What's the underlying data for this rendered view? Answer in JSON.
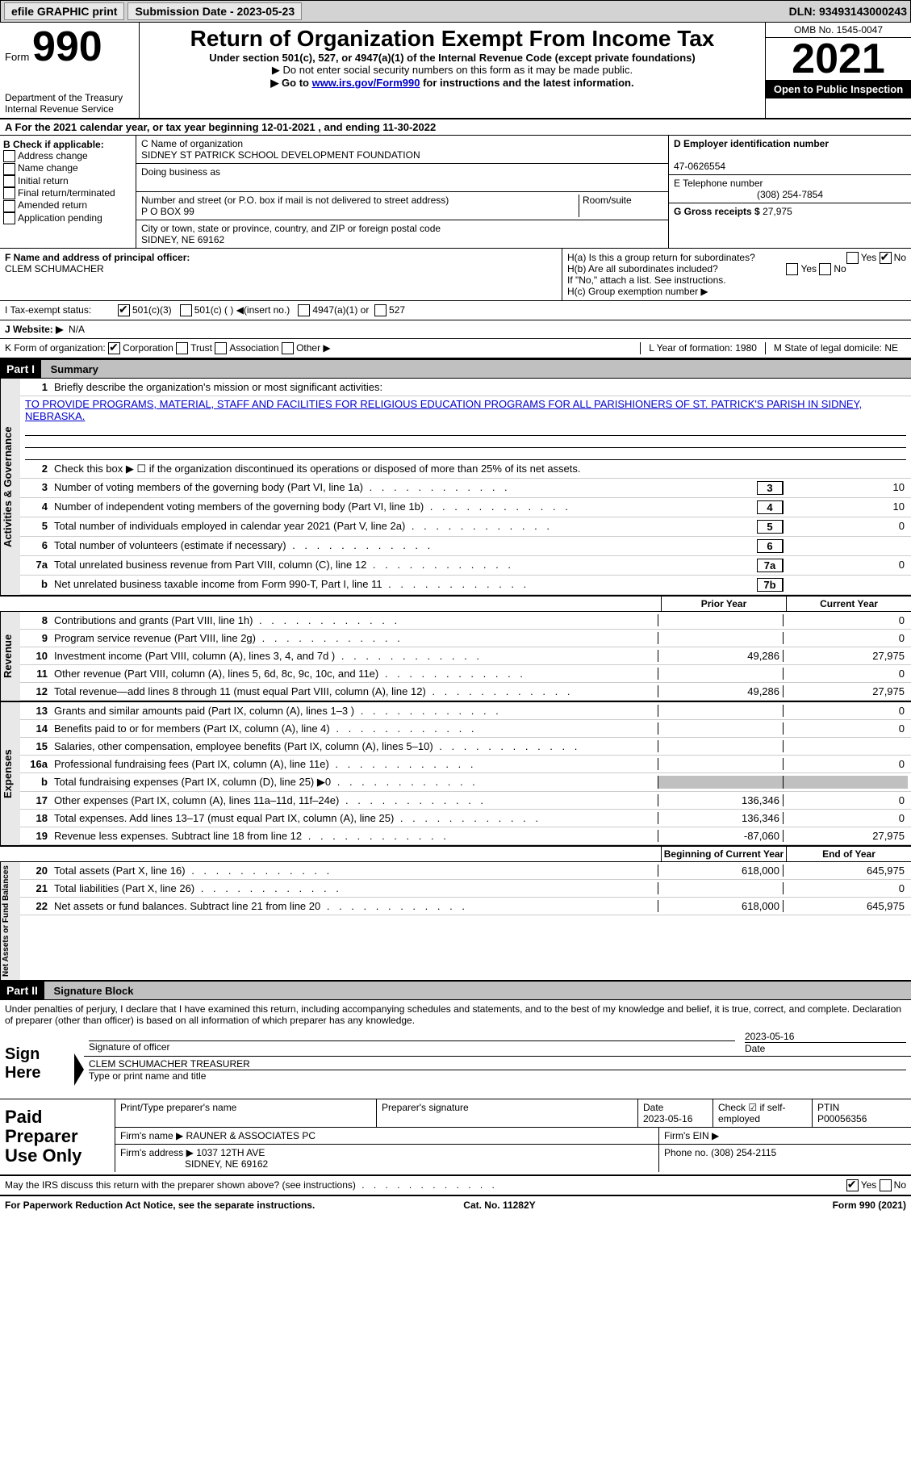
{
  "topbar": {
    "efile": "efile GRAPHIC print",
    "submission": "Submission Date - 2023-05-23",
    "dln": "DLN: 93493143000243"
  },
  "header": {
    "form_prefix": "Form",
    "form_number": "990",
    "title": "Return of Organization Exempt From Income Tax",
    "subtitle": "Under section 501(c), 527, or 4947(a)(1) of the Internal Revenue Code (except private foundations)",
    "note1": "▶ Do not enter social security numbers on this form as it may be made public.",
    "note2_prefix": "▶ Go to ",
    "note2_link": "www.irs.gov/Form990",
    "note2_suffix": " for instructions and the latest information.",
    "dept": "Department of the Treasury",
    "irs": "Internal Revenue Service",
    "omb": "OMB No. 1545-0047",
    "year": "2021",
    "inspection": "Open to Public Inspection"
  },
  "section_a": "A  For the 2021 calendar year, or tax year beginning 12-01-2021    , and ending 11-30-2022",
  "col_b": {
    "header": "B Check if applicable:",
    "items": [
      "Address change",
      "Name change",
      "Initial return",
      "Final return/terminated",
      "Amended return",
      "Application pending"
    ]
  },
  "col_c": {
    "name_label": "C Name of organization",
    "name": "SIDNEY ST PATRICK SCHOOL DEVELOPMENT FOUNDATION",
    "dba_label": "Doing business as",
    "dba": "",
    "addr_label": "Number and street (or P.O. box if mail is not delivered to street address)",
    "addr": "P O BOX 99",
    "room_label": "Room/suite",
    "city_label": "City or town, state or province, country, and ZIP or foreign postal code",
    "city": "SIDNEY, NE  69162"
  },
  "col_d": {
    "ein_label": "D Employer identification number",
    "ein": "47-0626554",
    "phone_label": "E Telephone number",
    "phone": "(308) 254-7854",
    "gross_label": "G Gross receipts $ ",
    "gross": "27,975"
  },
  "row_f": {
    "label": "F Name and address of principal officer:",
    "name": "CLEM SCHUMACHER"
  },
  "row_h": {
    "a": "H(a)  Is this a group return for subordinates?",
    "b": "H(b)  Are all subordinates included?",
    "note": "If \"No,\" attach a list. See instructions.",
    "c": "H(c)  Group exemption number ▶"
  },
  "row_i": {
    "label": "I    Tax-exempt status:",
    "opt1": "501(c)(3)",
    "opt2": "501(c) (  ) ◀(insert no.)",
    "opt3": "4947(a)(1) or",
    "opt4": "527"
  },
  "row_j": {
    "label": "J   Website: ▶",
    "value": "N/A"
  },
  "row_k": {
    "label": "K Form of organization:",
    "opts": [
      "Corporation",
      "Trust",
      "Association",
      "Other ▶"
    ],
    "l": "L Year of formation: 1980",
    "m": "M State of legal domicile: NE"
  },
  "part1": {
    "header": "Part I",
    "title": "Summary",
    "line1_label": "Briefly describe the organization's mission or most significant activities:",
    "mission": "TO PROVIDE PROGRAMS, MATERIAL, STAFF AND FACILITIES FOR RELIGIOUS EDUCATION PROGRAMS FOR ALL PARISHIONERS OF ST. PATRICK'S PARISH IN SIDNEY, NEBRASKA.",
    "line2": "Check this box ▶ ☐  if the organization discontinued its operations or disposed of more than 25% of its net assets.",
    "lines_simple": [
      {
        "n": "3",
        "d": "Number of voting members of the governing body (Part VI, line 1a)",
        "box": "3",
        "v": "10"
      },
      {
        "n": "4",
        "d": "Number of independent voting members of the governing body (Part VI, line 1b)",
        "box": "4",
        "v": "10"
      },
      {
        "n": "5",
        "d": "Total number of individuals employed in calendar year 2021 (Part V, line 2a)",
        "box": "5",
        "v": "0"
      },
      {
        "n": "6",
        "d": "Total number of volunteers (estimate if necessary)",
        "box": "6",
        "v": ""
      },
      {
        "n": "7a",
        "d": "Total unrelated business revenue from Part VIII, column (C), line 12",
        "box": "7a",
        "v": "0"
      },
      {
        "n": "b",
        "d": "Net unrelated business taxable income from Form 990-T, Part I, line 11",
        "box": "7b",
        "v": ""
      }
    ],
    "col_headers": {
      "prior": "Prior Year",
      "current": "Current Year"
    },
    "revenue": [
      {
        "n": "8",
        "d": "Contributions and grants (Part VIII, line 1h)",
        "p": "",
        "c": "0"
      },
      {
        "n": "9",
        "d": "Program service revenue (Part VIII, line 2g)",
        "p": "",
        "c": "0"
      },
      {
        "n": "10",
        "d": "Investment income (Part VIII, column (A), lines 3, 4, and 7d )",
        "p": "49,286",
        "c": "27,975"
      },
      {
        "n": "11",
        "d": "Other revenue (Part VIII, column (A), lines 5, 6d, 8c, 9c, 10c, and 11e)",
        "p": "",
        "c": "0"
      },
      {
        "n": "12",
        "d": "Total revenue—add lines 8 through 11 (must equal Part VIII, column (A), line 12)",
        "p": "49,286",
        "c": "27,975"
      }
    ],
    "expenses": [
      {
        "n": "13",
        "d": "Grants and similar amounts paid (Part IX, column (A), lines 1–3 )",
        "p": "",
        "c": "0"
      },
      {
        "n": "14",
        "d": "Benefits paid to or for members (Part IX, column (A), line 4)",
        "p": "",
        "c": "0"
      },
      {
        "n": "15",
        "d": "Salaries, other compensation, employee benefits (Part IX, column (A), lines 5–10)",
        "p": "",
        "c": ""
      },
      {
        "n": "16a",
        "d": "Professional fundraising fees (Part IX, column (A), line 11e)",
        "p": "",
        "c": "0"
      },
      {
        "n": "b",
        "d": "Total fundraising expenses (Part IX, column (D), line 25) ▶0",
        "p": "grey",
        "c": "grey"
      },
      {
        "n": "17",
        "d": "Other expenses (Part IX, column (A), lines 11a–11d, 11f–24e)",
        "p": "136,346",
        "c": "0"
      },
      {
        "n": "18",
        "d": "Total expenses. Add lines 13–17 (must equal Part IX, column (A), line 25)",
        "p": "136,346",
        "c": "0"
      },
      {
        "n": "19",
        "d": "Revenue less expenses. Subtract line 18 from line 12",
        "p": "-87,060",
        "c": "27,975"
      }
    ],
    "net_headers": {
      "begin": "Beginning of Current Year",
      "end": "End of Year"
    },
    "net": [
      {
        "n": "20",
        "d": "Total assets (Part X, line 16)",
        "p": "618,000",
        "c": "645,975"
      },
      {
        "n": "21",
        "d": "Total liabilities (Part X, line 26)",
        "p": "",
        "c": "0"
      },
      {
        "n": "22",
        "d": "Net assets or fund balances. Subtract line 21 from line 20",
        "p": "618,000",
        "c": "645,975"
      }
    ],
    "vtabs": {
      "gov": "Activities & Governance",
      "rev": "Revenue",
      "exp": "Expenses",
      "net": "Net Assets or Fund Balances"
    }
  },
  "part2": {
    "header": "Part II",
    "title": "Signature Block",
    "declaration": "Under penalties of perjury, I declare that I have examined this return, including accompanying schedules and statements, and to the best of my knowledge and belief, it is true, correct, and complete. Declaration of preparer (other than officer) is based on all information of which preparer has any knowledge.",
    "sign_here": "Sign Here",
    "sig_officer": "Signature of officer",
    "sig_date": "2023-05-16",
    "date_label": "Date",
    "officer_name": "CLEM SCHUMACHER  TREASURER",
    "type_name": "Type or print name and title",
    "paid": "Paid Preparer Use Only",
    "prep_name_label": "Print/Type preparer's name",
    "prep_sig_label": "Preparer's signature",
    "prep_date_label": "Date",
    "prep_date": "2023-05-16",
    "check_if": "Check ☑ if self-employed",
    "ptin_label": "PTIN",
    "ptin": "P00056356",
    "firm_name_label": "Firm's name     ▶",
    "firm_name": "RAUNER & ASSOCIATES PC",
    "firm_ein_label": "Firm's EIN ▶",
    "firm_addr_label": "Firm's address ▶",
    "firm_addr1": "1037 12TH AVE",
    "firm_addr2": "SIDNEY, NE  69162",
    "firm_phone_label": "Phone no. ",
    "firm_phone": "(308) 254-2115",
    "discuss": "May the IRS discuss this return with the preparer shown above? (see instructions)"
  },
  "footer": {
    "pra": "For Paperwork Reduction Act Notice, see the separate instructions.",
    "cat": "Cat. No. 11282Y",
    "form": "Form 990 (2021)"
  },
  "yes": "Yes",
  "no": "No"
}
